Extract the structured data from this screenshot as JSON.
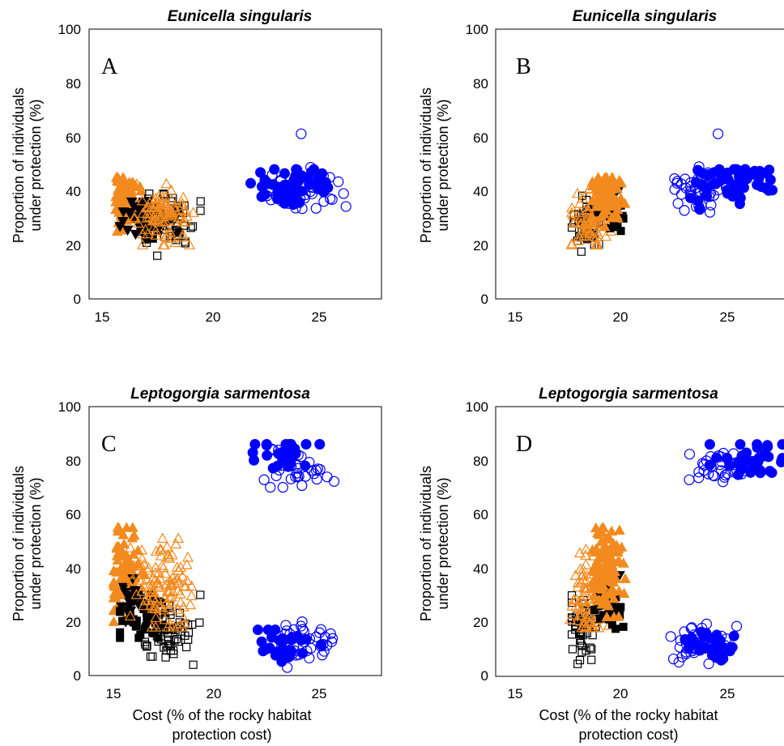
{
  "panels": [
    {
      "id": "A",
      "letter": "A",
      "title": "Eunicella singularis",
      "ylabel_line1": "Proportion of individuals",
      "ylabel_line2": "under protection (%)",
      "xlabel_line1": "",
      "xlabel_line2": "",
      "x_ticks": [
        "15",
        "20",
        "25"
      ],
      "y_ticks": [
        "0",
        "20",
        "40",
        "60",
        "80",
        "100"
      ]
    },
    {
      "id": "B",
      "letter": "B",
      "title": "Eunicella singularis",
      "ylabel_line1": "Proportion of individuals",
      "ylabel_line2": "under protection (%)",
      "xlabel_line1": "",
      "xlabel_line2": "",
      "x_ticks": [
        "15",
        "20",
        "25"
      ],
      "y_ticks": [
        "0",
        "20",
        "40",
        "60",
        "80",
        "100"
      ]
    },
    {
      "id": "C",
      "letter": "C",
      "title": "Leptogorgia sarmentosa",
      "ylabel_line1": "Proportion of individuals",
      "ylabel_line2": "under protection (%)",
      "xlabel_line1": "Cost (% of the rocky habitat",
      "xlabel_line2": "protection cost)",
      "x_ticks": [
        "15",
        "20",
        "25"
      ],
      "y_ticks": [
        "0",
        "20",
        "40",
        "60",
        "80",
        "100"
      ]
    },
    {
      "id": "D",
      "letter": "D",
      "title": "Leptogorgia sarmentosa",
      "ylabel_line1": "Proportion of individuals",
      "ylabel_line2": "under protection (%)",
      "xlabel_line1": "Cost (% of the rocky habitat",
      "xlabel_line2": "protection cost)",
      "x_ticks": [
        "15",
        "20",
        "25"
      ],
      "y_ticks": [
        "0",
        "20",
        "40",
        "60",
        "80",
        "100"
      ]
    }
  ],
  "colors": {
    "blue": "#0000ff",
    "orange": "#f28a1f",
    "black": "#000000"
  },
  "chart_data": [
    {
      "panel": "A",
      "type": "scatter",
      "title": "Eunicella singularis",
      "ylabel": "Proportion of individuals under protection (%)",
      "xlabel": "",
      "xlim": [
        13.8,
        28
      ],
      "ylim": [
        0,
        100
      ],
      "x_ticks": [
        15,
        20,
        25
      ],
      "y_ticks": [
        0,
        20,
        40,
        60,
        80,
        100
      ],
      "grid": false,
      "axis_box": true,
      "series": [
        {
          "marker": "triangle-filled",
          "color": "#f28a1f",
          "x_range": [
            15.1,
            16.4
          ],
          "y_range": [
            25,
            45
          ],
          "center": [
            15.6,
            36
          ],
          "count": 90,
          "seed": 11
        },
        {
          "marker": "triangle-down-filled",
          "color": "#000000",
          "x_range": [
            15.3,
            16.6
          ],
          "y_range": [
            24,
            36
          ],
          "center": [
            15.9,
            30
          ],
          "count": 20,
          "seed": 12
        },
        {
          "marker": "square-filled",
          "color": "#000000",
          "x_range": [
            15.8,
            18.2
          ],
          "y_range": [
            22,
            36
          ],
          "center": [
            16.8,
            29
          ],
          "count": 35,
          "seed": 13
        },
        {
          "marker": "square-open",
          "color": "#000000",
          "x_range": [
            16.3,
            19.4
          ],
          "y_range": [
            16,
            39
          ],
          "center": [
            17.6,
            29
          ],
          "count": 60,
          "seed": 14
        },
        {
          "marker": "triangle-open",
          "color": "#f28a1f",
          "x_range": [
            16.0,
            19.0
          ],
          "y_range": [
            20,
            43
          ],
          "center": [
            17.4,
            31
          ],
          "count": 90,
          "seed": 15
        },
        {
          "marker": "circle-filled",
          "color": "#0000ff",
          "x_range": [
            21.6,
            25.4
          ],
          "y_range": [
            33,
            48
          ],
          "center": [
            23.6,
            42
          ],
          "count": 55,
          "seed": 16
        },
        {
          "marker": "circle-open",
          "color": "#0000ff",
          "x_range": [
            22.2,
            26.4
          ],
          "y_range": [
            32,
            50
          ],
          "center": [
            24.0,
            40
          ],
          "count": 45,
          "seed": 17
        },
        {
          "marker": "circle-open",
          "color": "#0000ff",
          "points": [
            [
              24.1,
              61.2
            ]
          ]
        }
      ]
    },
    {
      "panel": "B",
      "type": "scatter",
      "title": "Eunicella singularis",
      "ylabel": "Proportion of individuals under protection (%)",
      "xlabel": "",
      "xlim": [
        13.8,
        28
      ],
      "ylim": [
        0,
        100
      ],
      "x_ticks": [
        15,
        20,
        25
      ],
      "y_ticks": [
        0,
        20,
        40,
        60,
        80,
        100
      ],
      "grid": false,
      "axis_box": true,
      "series": [
        {
          "marker": "square-open",
          "color": "#000000",
          "x_range": [
            17.5,
            19.0
          ],
          "y_range": [
            16,
            39
          ],
          "center": [
            18.2,
            28
          ],
          "count": 55,
          "seed": 21
        },
        {
          "marker": "triangle-open",
          "color": "#f28a1f",
          "x_range": [
            17.5,
            19.4
          ],
          "y_range": [
            20,
            42
          ],
          "center": [
            18.3,
            30
          ],
          "count": 70,
          "seed": 22
        },
        {
          "marker": "square-filled",
          "color": "#000000",
          "x_range": [
            18.6,
            20.0
          ],
          "y_range": [
            24,
            40
          ],
          "center": [
            19.3,
            32
          ],
          "count": 30,
          "seed": 23
        },
        {
          "marker": "triangle-down-filled",
          "color": "#000000",
          "x_range": [
            18.8,
            20.0
          ],
          "y_range": [
            30,
            42
          ],
          "center": [
            19.4,
            37
          ],
          "count": 15,
          "seed": 24
        },
        {
          "marker": "triangle-filled",
          "color": "#f28a1f",
          "x_range": [
            18.5,
            20.1
          ],
          "y_range": [
            25,
            45
          ],
          "center": [
            19.2,
            37
          ],
          "count": 80,
          "seed": 25
        },
        {
          "marker": "circle-open",
          "color": "#0000ff",
          "x_range": [
            22.3,
            26.0
          ],
          "y_range": [
            32,
            49
          ],
          "center": [
            23.8,
            40
          ],
          "count": 45,
          "seed": 26
        },
        {
          "marker": "circle-filled",
          "color": "#0000ff",
          "x_range": [
            23.0,
            28.0
          ],
          "y_range": [
            33,
            48
          ],
          "center": [
            25.5,
            43
          ],
          "count": 55,
          "seed": 27
        },
        {
          "marker": "circle-open",
          "color": "#0000ff",
          "points": [
            [
              24.6,
              61.2
            ]
          ]
        }
      ]
    },
    {
      "panel": "C",
      "type": "scatter",
      "title": "Leptogorgia sarmentosa",
      "ylabel": "Proportion of individuals under protection (%)",
      "xlabel": "Cost (% of the rocky habitat protection cost)",
      "xlim": [
        13.8,
        28
      ],
      "ylim": [
        0,
        100
      ],
      "x_ticks": [
        15,
        20,
        25
      ],
      "y_ticks": [
        0,
        20,
        40,
        60,
        80,
        100
      ],
      "grid": false,
      "axis_box": true,
      "series": [
        {
          "marker": "triangle-filled",
          "color": "#f28a1f",
          "x_range": [
            15.0,
            16.5
          ],
          "y_range": [
            20,
            55
          ],
          "center": [
            15.5,
            38
          ],
          "count": 100,
          "seed": 31
        },
        {
          "marker": "triangle-down-filled",
          "color": "#000000",
          "x_range": [
            15.3,
            16.6
          ],
          "y_range": [
            20,
            36
          ],
          "center": [
            15.9,
            27
          ],
          "count": 20,
          "seed": 32
        },
        {
          "marker": "square-filled",
          "color": "#000000",
          "x_range": [
            15.3,
            18.3
          ],
          "y_range": [
            14,
            30
          ],
          "center": [
            16.5,
            21
          ],
          "count": 40,
          "seed": 33
        },
        {
          "marker": "square-open",
          "color": "#000000",
          "x_range": [
            16.3,
            19.2
          ],
          "y_range": [
            4,
            30
          ],
          "center": [
            17.6,
            17
          ],
          "count": 60,
          "seed": 34
        },
        {
          "marker": "triangle-open",
          "color": "#f28a1f",
          "x_range": [
            15.8,
            19.0
          ],
          "y_range": [
            18,
            51
          ],
          "center": [
            17.4,
            33
          ],
          "count": 110,
          "seed": 35
        },
        {
          "marker": "circle-filled",
          "color": "#0000ff",
          "x_range": [
            21.6,
            25.0
          ],
          "y_range": [
            72,
            86
          ],
          "center": [
            23.4,
            81
          ],
          "count": 30,
          "seed": 36
        },
        {
          "marker": "circle-open",
          "color": "#0000ff",
          "x_range": [
            22.3,
            25.7
          ],
          "y_range": [
            70,
            87
          ],
          "center": [
            23.9,
            77
          ],
          "count": 30,
          "seed": 37
        },
        {
          "marker": "circle-filled",
          "color": "#0000ff",
          "x_range": [
            22.0,
            25.1
          ],
          "y_range": [
            3,
            17
          ],
          "center": [
            23.3,
            11
          ],
          "count": 30,
          "seed": 38
        },
        {
          "marker": "circle-open",
          "color": "#0000ff",
          "x_range": [
            22.5,
            26.4
          ],
          "y_range": [
            3,
            20
          ],
          "center": [
            24.2,
            12
          ],
          "count": 35,
          "seed": 39
        }
      ]
    },
    {
      "panel": "D",
      "type": "scatter",
      "title": "Leptogorgia sarmentosa",
      "ylabel": "Proportion of individuals under protection (%)",
      "xlabel": "Cost (% of the rocky habitat protection cost)",
      "xlim": [
        13.8,
        28
      ],
      "ylim": [
        0,
        100
      ],
      "x_ticks": [
        15,
        20,
        25
      ],
      "y_ticks": [
        0,
        20,
        40,
        60,
        80,
        100
      ],
      "grid": false,
      "axis_box": true,
      "series": [
        {
          "marker": "square-open",
          "color": "#000000",
          "x_range": [
            17.5,
            19.0
          ],
          "y_range": [
            4,
            30
          ],
          "center": [
            18.1,
            18
          ],
          "count": 55,
          "seed": 41
        },
        {
          "marker": "triangle-open",
          "color": "#f28a1f",
          "x_range": [
            17.4,
            19.4
          ],
          "y_range": [
            18,
            51
          ],
          "center": [
            18.3,
            30
          ],
          "count": 90,
          "seed": 42
        },
        {
          "marker": "square-filled",
          "color": "#000000",
          "x_range": [
            18.6,
            20.0
          ],
          "y_range": [
            15,
            34
          ],
          "center": [
            19.3,
            24
          ],
          "count": 30,
          "seed": 43
        },
        {
          "marker": "triangle-down-filled",
          "color": "#000000",
          "x_range": [
            18.8,
            20.0
          ],
          "y_range": [
            26,
            40
          ],
          "center": [
            19.4,
            33
          ],
          "count": 15,
          "seed": 44
        },
        {
          "marker": "triangle-filled",
          "color": "#f28a1f",
          "x_range": [
            18.5,
            20.2
          ],
          "y_range": [
            22,
            55
          ],
          "center": [
            19.2,
            40
          ],
          "count": 100,
          "seed": 45
        },
        {
          "marker": "circle-open",
          "color": "#0000ff",
          "x_range": [
            23.2,
            26.3
          ],
          "y_range": [
            70,
            86
          ],
          "center": [
            24.8,
            78
          ],
          "count": 30,
          "seed": 46
        },
        {
          "marker": "circle-filled",
          "color": "#0000ff",
          "x_range": [
            24.2,
            28.0
          ],
          "y_range": [
            72,
            86
          ],
          "center": [
            26.4,
            80
          ],
          "count": 35,
          "seed": 47
        },
        {
          "marker": "circle-open",
          "color": "#0000ff",
          "x_range": [
            22.3,
            25.8
          ],
          "y_range": [
            3,
            20
          ],
          "center": [
            23.8,
            12
          ],
          "count": 35,
          "seed": 48
        },
        {
          "marker": "circle-filled",
          "color": "#0000ff",
          "x_range": [
            23.0,
            26.0
          ],
          "y_range": [
            3,
            18
          ],
          "center": [
            24.2,
            11
          ],
          "count": 30,
          "seed": 49
        }
      ]
    }
  ]
}
